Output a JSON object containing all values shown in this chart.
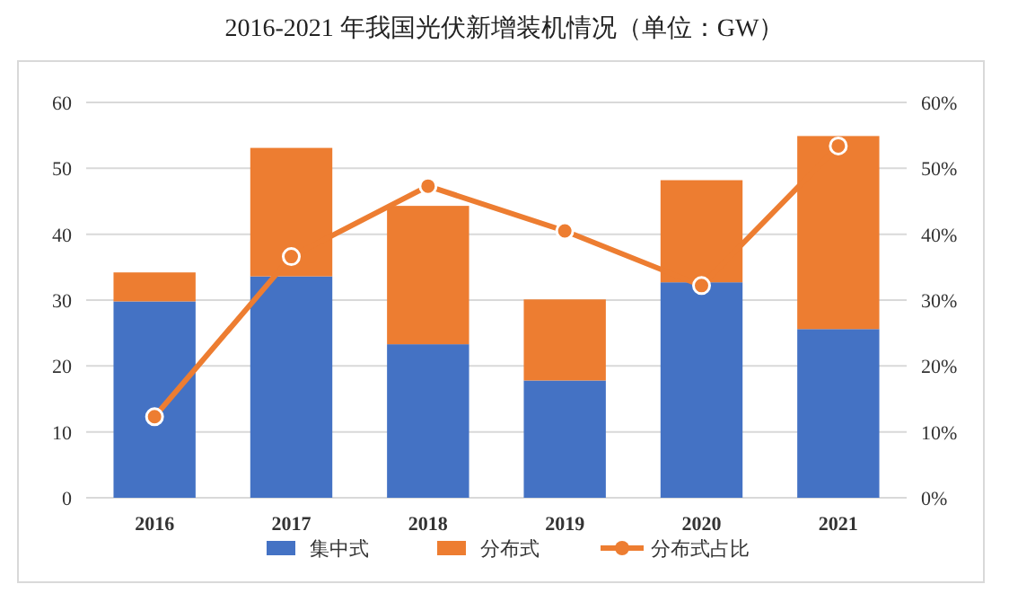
{
  "chart_data": {
    "type": "bar",
    "title": "2016-2021 年我国光伏新增装机情况（单位：GW）",
    "categories": [
      "2016",
      "2017",
      "2018",
      "2019",
      "2020",
      "2021"
    ],
    "stacked": true,
    "series": [
      {
        "name": "集中式",
        "color": "#4472c4",
        "values": [
          29.8,
          33.6,
          23.3,
          17.8,
          32.7,
          25.6
        ]
      },
      {
        "name": "分布式",
        "color": "#ed7d31",
        "values": [
          4.4,
          19.5,
          21.0,
          12.3,
          15.5,
          29.3
        ]
      },
      {
        "name": "分布式占比",
        "type": "line",
        "axis": "y2",
        "color": "#ed7d31",
        "marker": "circle",
        "values": [
          12.3,
          36.6,
          47.3,
          40.5,
          32.2,
          53.4
        ]
      }
    ],
    "ylim": [
      0,
      60
    ],
    "yticks": [
      0,
      10,
      20,
      30,
      40,
      50,
      60
    ],
    "y2lim": [
      0,
      60
    ],
    "y2ticks": [
      {
        "value": 0,
        "label": "0%"
      },
      {
        "value": 10,
        "label": "10%"
      },
      {
        "value": 20,
        "label": "20%"
      },
      {
        "value": 30,
        "label": "30%"
      },
      {
        "value": 40,
        "label": "40%"
      },
      {
        "value": 50,
        "label": "50%"
      },
      {
        "value": 60,
        "label": "60%"
      }
    ],
    "grid": "y",
    "legend": "bottom"
  }
}
